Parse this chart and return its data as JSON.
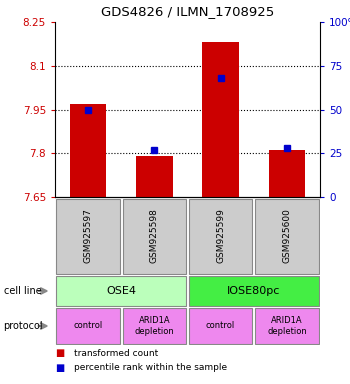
{
  "title": "GDS4826 / ILMN_1708925",
  "samples": [
    "GSM925597",
    "GSM925598",
    "GSM925599",
    "GSM925600"
  ],
  "bar_values": [
    7.97,
    7.79,
    8.18,
    7.81
  ],
  "bar_bottom": 7.65,
  "percentile_values": [
    50,
    27,
    68,
    28
  ],
  "ylim_left": [
    7.65,
    8.25
  ],
  "ylim_right": [
    0,
    100
  ],
  "yticks_left": [
    7.65,
    7.8,
    7.95,
    8.1,
    8.25
  ],
  "yticks_right": [
    0,
    25,
    50,
    75,
    100
  ],
  "ytick_labels_left": [
    "7.65",
    "7.8",
    "7.95",
    "8.1",
    "8.25"
  ],
  "ytick_labels_right": [
    "0",
    "25",
    "50",
    "75",
    "100%"
  ],
  "hlines": [
    7.8,
    7.95,
    8.1
  ],
  "bar_color": "#cc0000",
  "dot_color": "#0000cc",
  "bar_width": 0.55,
  "cell_line_groups": [
    {
      "label": "OSE4",
      "samples": [
        0,
        1
      ],
      "color": "#bbffbb"
    },
    {
      "label": "IOSE80pc",
      "samples": [
        2,
        3
      ],
      "color": "#44ee44"
    }
  ],
  "protocol_groups": [
    {
      "label": "control",
      "sample": 0,
      "color": "#ee88ee"
    },
    {
      "label": "ARID1A\ndepletion",
      "sample": 1,
      "color": "#ee88ee"
    },
    {
      "label": "control",
      "sample": 2,
      "color": "#ee88ee"
    },
    {
      "label": "ARID1A\ndepletion",
      "sample": 3,
      "color": "#ee88ee"
    }
  ],
  "legend_items": [
    {
      "color": "#cc0000",
      "label": "transformed count"
    },
    {
      "color": "#0000cc",
      "label": "percentile rank within the sample"
    }
  ],
  "label_cell_line": "cell line",
  "label_protocol": "protocol",
  "tick_color_left": "#cc0000",
  "tick_color_right": "#0000cc",
  "sample_box_color": "#cccccc",
  "arrow_color": "#888888"
}
